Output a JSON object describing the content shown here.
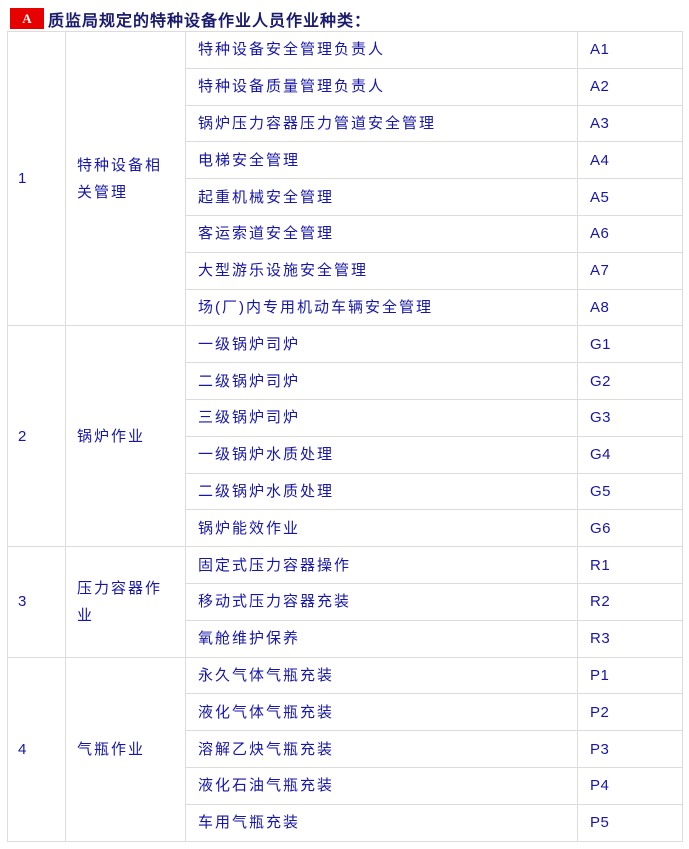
{
  "header": {
    "badge_label": "A",
    "title": "质监局规定的特种设备作业人员作业种类："
  },
  "colors": {
    "badge_bg": "#e60000",
    "badge_text": "#ffffff",
    "title_text": "#1b1b6e",
    "cell_text": "#1616a8",
    "border": "#dcdcdc",
    "background": "#ffffff"
  },
  "table": {
    "groups": [
      {
        "no": "1",
        "category": "特种设备相关管理",
        "items": [
          {
            "name": "特种设备安全管理负责人",
            "code": "A1"
          },
          {
            "name": "特种设备质量管理负责人",
            "code": "A2"
          },
          {
            "name": "锅炉压力容器压力管道安全管理",
            "code": "A3"
          },
          {
            "name": "电梯安全管理",
            "code": "A4"
          },
          {
            "name": "起重机械安全管理",
            "code": "A5"
          },
          {
            "name": "客运索道安全管理",
            "code": "A6"
          },
          {
            "name": "大型游乐设施安全管理",
            "code": "A7"
          },
          {
            "name": "场(厂)内专用机动车辆安全管理",
            "code": "A8"
          }
        ]
      },
      {
        "no": "2",
        "category": "锅炉作业",
        "items": [
          {
            "name": "一级锅炉司炉",
            "code": "G1"
          },
          {
            "name": "二级锅炉司炉",
            "code": "G2"
          },
          {
            "name": "三级锅炉司炉",
            "code": "G3"
          },
          {
            "name": "一级锅炉水质处理",
            "code": "G4"
          },
          {
            "name": "二级锅炉水质处理",
            "code": "G5"
          },
          {
            "name": "锅炉能效作业",
            "code": "G6"
          }
        ]
      },
      {
        "no": "3",
        "category": "压力容器作业",
        "items": [
          {
            "name": "固定式压力容器操作",
            "code": "R1"
          },
          {
            "name": "移动式压力容器充装",
            "code": "R2"
          },
          {
            "name": "氧舱维护保养",
            "code": "R3"
          }
        ]
      },
      {
        "no": "4",
        "category": "气瓶作业",
        "items": [
          {
            "name": "永久气体气瓶充装",
            "code": "P1"
          },
          {
            "name": "液化气体气瓶充装",
            "code": "P2"
          },
          {
            "name": "溶解乙炔气瓶充装",
            "code": "P3"
          },
          {
            "name": "液化石油气瓶充装",
            "code": "P4"
          },
          {
            "name": "车用气瓶充装",
            "code": "P5"
          }
        ]
      }
    ]
  }
}
